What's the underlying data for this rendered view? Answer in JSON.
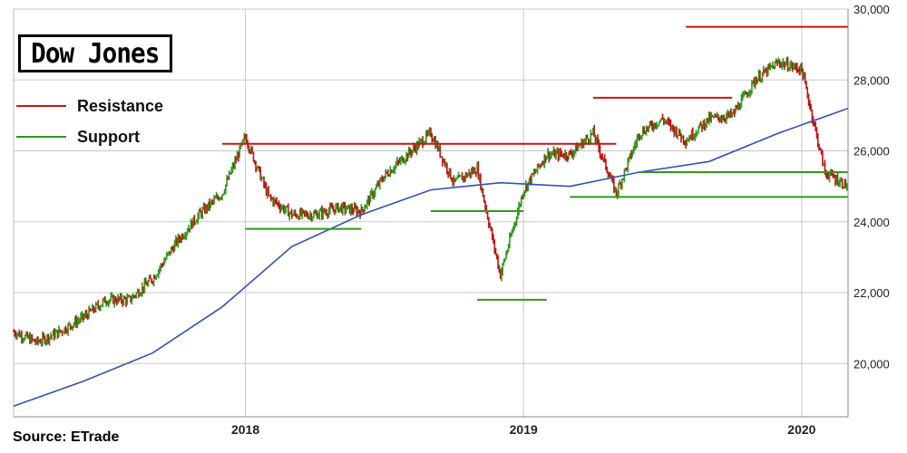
{
  "title": "Dow Jones",
  "legend": {
    "resistance_label": "Resistance",
    "support_label": "Support"
  },
  "source": "Source: ETrade",
  "colors": {
    "price_up": "#2e9a1e",
    "price_down": "#c41212",
    "moving_average": "#3050c0",
    "resistance": "#c8160c",
    "support": "#2f9a1c",
    "grid": "#c8c8c8"
  },
  "chart_data": {
    "type": "line",
    "title": "Dow Jones",
    "xlabel": "",
    "ylabel": "",
    "x_ticks": [
      "2018",
      "2019",
      "2020"
    ],
    "y_ticks": [
      20000,
      22000,
      24000,
      26000,
      28000,
      30000
    ],
    "y_tick_labels": [
      "20,000",
      "22,000",
      "24,000",
      "26,000",
      "28,000",
      "30,000"
    ],
    "xlim": [
      "2017-03",
      "2020-03"
    ],
    "ylim": [
      18500,
      30000
    ],
    "grid": true,
    "legend_position": "top-left",
    "series": [
      {
        "name": "",
        "style": "candlestick",
        "x": [
          "2017-03",
          "2017-04",
          "2017-05",
          "2017-06",
          "2017-07",
          "2017-08",
          "2017-09",
          "2017-10",
          "2017-11",
          "2017-12",
          "2018-01",
          "2018-02",
          "2018-03",
          "2018-04",
          "2018-05",
          "2018-06",
          "2018-07",
          "2018-08",
          "2018-09",
          "2018-10",
          "2018-11",
          "2018-12",
          "2019-01",
          "2019-02",
          "2019-03",
          "2019-04",
          "2019-05",
          "2019-06",
          "2019-07",
          "2019-08",
          "2019-09",
          "2019-10",
          "2019-11",
          "2019-12",
          "2020-01",
          "2020-02",
          "2020-03"
        ],
        "values": [
          20900,
          20600,
          20900,
          21300,
          21800,
          21800,
          22400,
          23400,
          24200,
          24800,
          26400,
          24700,
          24200,
          24200,
          24400,
          24300,
          25300,
          25900,
          26500,
          25100,
          25500,
          22500,
          24900,
          25900,
          25900,
          26500,
          24800,
          26500,
          26900,
          26300,
          26900,
          27000,
          28000,
          28500,
          28300,
          25400,
          25000
        ]
      },
      {
        "name": "",
        "style": "line",
        "x": [
          "2017-03",
          "2017-06",
          "2017-09",
          "2017-12",
          "2018-03",
          "2018-06",
          "2018-09",
          "2018-12",
          "2019-03",
          "2019-06",
          "2019-09",
          "2019-12",
          "2020-03"
        ],
        "values": [
          18800,
          19500,
          20300,
          21600,
          23300,
          24200,
          24900,
          25100,
          25000,
          25400,
          25700,
          26500,
          27200
        ]
      }
    ],
    "reference_lines": [
      {
        "kind": "resistance",
        "value": 26200,
        "x_start": "2017-12",
        "x_end": "2019-05"
      },
      {
        "kind": "resistance",
        "value": 27500,
        "x_start": "2019-04",
        "x_end": "2019-10"
      },
      {
        "kind": "resistance",
        "value": 29500,
        "x_start": "2019-08",
        "x_end": "2020-03"
      },
      {
        "kind": "support",
        "value": 23800,
        "x_start": "2018-01",
        "x_end": "2018-06"
      },
      {
        "kind": "support",
        "value": 24300,
        "x_start": "2018-09",
        "x_end": "2019-01"
      },
      {
        "kind": "support",
        "value": 21800,
        "x_start": "2018-11",
        "x_end": "2019-02"
      },
      {
        "kind": "support",
        "value": 25400,
        "x_start": "2019-06",
        "x_end": "2020-03"
      },
      {
        "kind": "support",
        "value": 24700,
        "x_start": "2019-03",
        "x_end": "2020-03"
      }
    ]
  }
}
